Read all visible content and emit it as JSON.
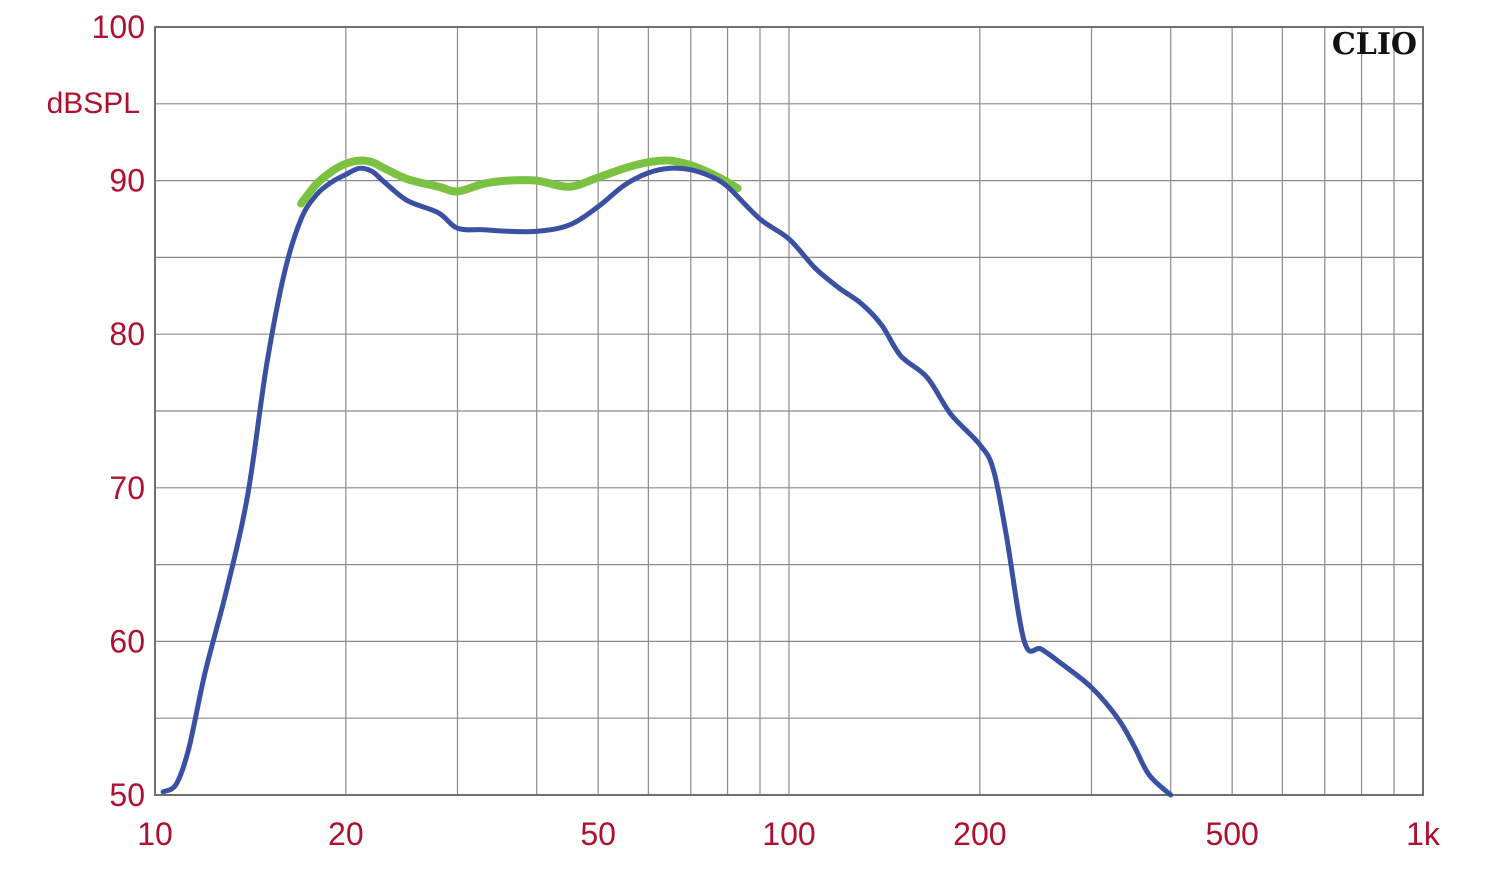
{
  "chart_data": {
    "type": "line",
    "brand": "CLIO",
    "ylabel": "dBSPL",
    "x_scale": "log",
    "xlim": [
      10,
      1000
    ],
    "ylim": [
      50,
      100
    ],
    "grid": true,
    "x_ticks": [
      10,
      20,
      50,
      100,
      200,
      500,
      1000
    ],
    "x_tick_labels": [
      "10",
      "20",
      "50",
      "100",
      "200",
      "500",
      "1k"
    ],
    "y_ticks": [
      50,
      60,
      70,
      80,
      90,
      100
    ],
    "y_tick_labels": [
      "50",
      "60",
      "70",
      "80",
      "90",
      "100"
    ],
    "series": [
      {
        "color": "#7cc242",
        "x": [
          17,
          18,
          19,
          20,
          21,
          22,
          23,
          25,
          28,
          30,
          33,
          36,
          40,
          45,
          50,
          55,
          60,
          65,
          70,
          75,
          80,
          83
        ],
        "y": [
          88.5,
          89.8,
          90.6,
          91.1,
          91.3,
          91.2,
          90.8,
          90.1,
          89.6,
          89.3,
          89.8,
          90.0,
          90.0,
          89.6,
          90.2,
          90.8,
          91.2,
          91.3,
          91.0,
          90.5,
          89.9,
          89.5
        ]
      },
      {
        "color": "#3a50a3",
        "x": [
          10.3,
          10.8,
          11.3,
          12,
          13,
          14,
          15,
          16,
          17,
          18,
          19,
          20,
          21,
          22,
          23,
          25,
          28,
          30,
          33,
          36,
          40,
          45,
          50,
          55,
          60,
          65,
          70,
          75,
          80,
          90,
          100,
          110,
          120,
          130,
          140,
          150,
          165,
          180,
          200,
          210,
          220,
          235,
          250,
          270,
          300,
          330,
          350,
          370,
          400
        ],
        "y": [
          50.2,
          50.7,
          53.0,
          58.0,
          63.5,
          69.5,
          78.0,
          84.0,
          87.5,
          89.1,
          89.9,
          90.4,
          90.8,
          90.6,
          89.9,
          88.7,
          87.9,
          86.9,
          86.8,
          86.7,
          86.7,
          87.1,
          88.3,
          89.7,
          90.5,
          90.8,
          90.7,
          90.3,
          89.6,
          87.5,
          86.2,
          84.3,
          83.0,
          82.0,
          80.6,
          78.6,
          77.2,
          74.8,
          72.8,
          71.2,
          67.0,
          60.0,
          59.5,
          58.5,
          57.0,
          55.0,
          53.2,
          51.3,
          50.0
        ]
      }
    ]
  }
}
